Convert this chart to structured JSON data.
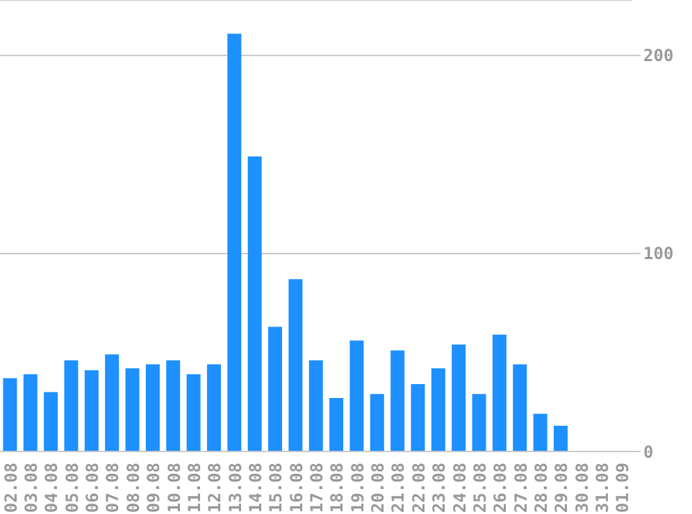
{
  "chart_data": {
    "type": "bar",
    "categories": [
      "02.08",
      "03.08",
      "04.08",
      "05.08",
      "06.08",
      "07.08",
      "08.08",
      "09.08",
      "10.08",
      "11.08",
      "12.08",
      "13.08",
      "14.08",
      "15.08",
      "16.08",
      "17.08",
      "18.08",
      "19.08",
      "20.08",
      "21.08",
      "22.08",
      "23.08",
      "24.08",
      "25.08",
      "26.08",
      "27.08",
      "28.08",
      "29.08",
      "30.08",
      "31.08",
      "01.09"
    ],
    "values": [
      37,
      39,
      30,
      46,
      41,
      49,
      42,
      44,
      46,
      39,
      44,
      211,
      149,
      63,
      87,
      46,
      27,
      56,
      29,
      51,
      34,
      42,
      54,
      29,
      59,
      44,
      19,
      13,
      0,
      0,
      0
    ],
    "color": "#1e90ff",
    "ylim": [
      0,
      228
    ],
    "yticks": [
      0,
      100,
      200
    ],
    "grid": "y"
  }
}
